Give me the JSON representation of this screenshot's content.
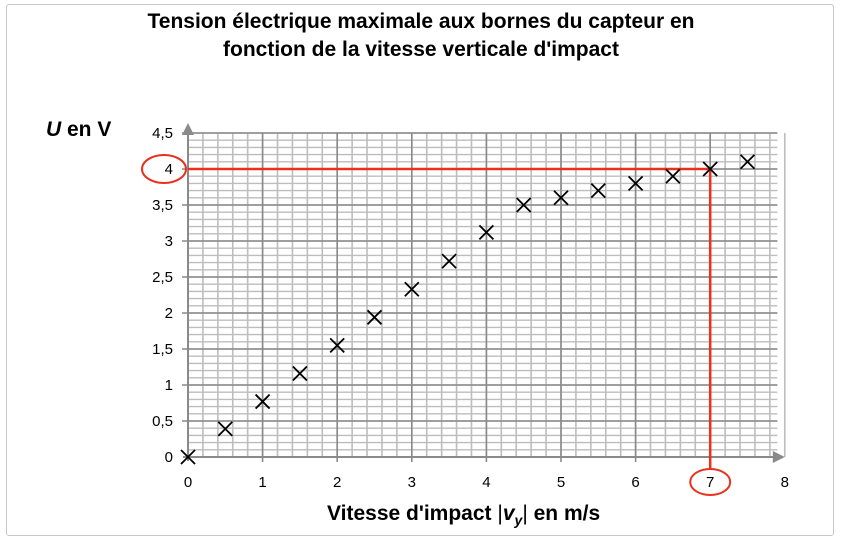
{
  "chart_data": {
    "type": "scatter",
    "title_line1": "Tension électrique maximale aux bornes du capteur en",
    "title_line2": "fonction de la vitesse verticale d'impact",
    "ylabel_symbol": "U",
    "ylabel_rest": " en V",
    "xlabel_pre": "Vitesse d'impact ",
    "xlabel_var": "v",
    "xlabel_sub": "y",
    "xlabel_post": " en m/s",
    "xlim": [
      0,
      8
    ],
    "ylim": [
      0,
      4.5
    ],
    "xticks": [
      "0",
      "1",
      "2",
      "3",
      "4",
      "5",
      "6",
      "7",
      "8"
    ],
    "yticks": [
      "0",
      "0,5",
      "1",
      "1,5",
      "2",
      "2,5",
      "3",
      "3,5",
      "4",
      "4,5"
    ],
    "grid": true,
    "marker": "x",
    "points": [
      {
        "x": 0,
        "y": 0
      },
      {
        "x": 0.5,
        "y": 0.39
      },
      {
        "x": 1,
        "y": 0.77
      },
      {
        "x": 1.5,
        "y": 1.16
      },
      {
        "x": 2,
        "y": 1.55
      },
      {
        "x": 2.5,
        "y": 1.94
      },
      {
        "x": 3,
        "y": 2.33
      },
      {
        "x": 3.5,
        "y": 2.72
      },
      {
        "x": 4,
        "y": 3.12
      },
      {
        "x": 4.5,
        "y": 3.5
      },
      {
        "x": 5,
        "y": 3.6
      },
      {
        "x": 5.5,
        "y": 3.7
      },
      {
        "x": 6,
        "y": 3.8
      },
      {
        "x": 6.5,
        "y": 3.9
      },
      {
        "x": 7,
        "y": 4.0
      },
      {
        "x": 7.5,
        "y": 4.1
      }
    ],
    "annotation": {
      "x": 7,
      "y": 4,
      "color": "#e8321e"
    },
    "colors": {
      "grid_minor": "#bdbdbd",
      "grid_major": "#8a8a8a",
      "axis": "#8a8a8a",
      "marker": "#000000"
    }
  }
}
